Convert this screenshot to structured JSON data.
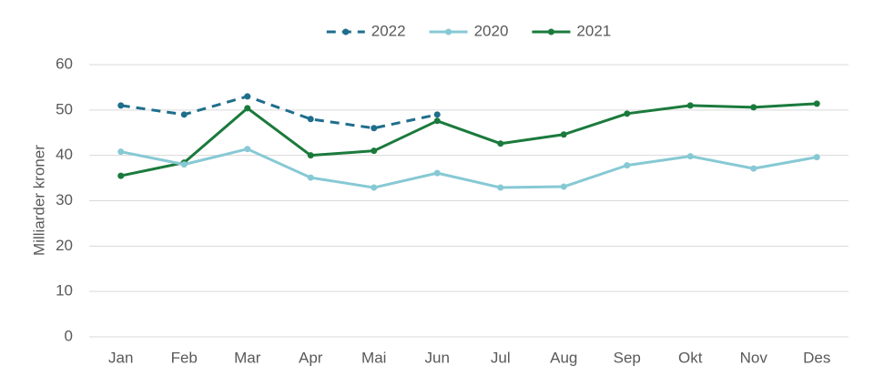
{
  "chart_data": {
    "type": "line",
    "y_label": "Milliarder kroner",
    "categories": [
      "Jan",
      "Feb",
      "Mar",
      "Apr",
      "Mai",
      "Jun",
      "Jul",
      "Aug",
      "Sep",
      "Okt",
      "Nov",
      "Des"
    ],
    "series": [
      {
        "name": "2022",
        "color": "#1f6e8c",
        "dashed": true,
        "values": [
          51,
          49,
          53,
          48,
          46,
          49,
          null,
          null,
          null,
          null,
          null,
          null
        ]
      },
      {
        "name": "2020",
        "color": "#86c9d4",
        "dashed": false,
        "values": [
          40.8,
          38,
          41.4,
          35.1,
          32.9,
          36.1,
          32.9,
          33.1,
          37.8,
          39.8,
          37.1,
          39.6
        ]
      },
      {
        "name": "2021",
        "color": "#1a7a3c",
        "dashed": false,
        "values": [
          35.5,
          38.4,
          50.4,
          40,
          41,
          47.6,
          42.6,
          44.6,
          49.2,
          51,
          50.6,
          51.4
        ]
      }
    ],
    "ylim": [
      0,
      60
    ],
    "yticks": [
      0,
      10,
      20,
      30,
      40,
      50,
      60
    ],
    "grid": true,
    "legend": "top"
  }
}
